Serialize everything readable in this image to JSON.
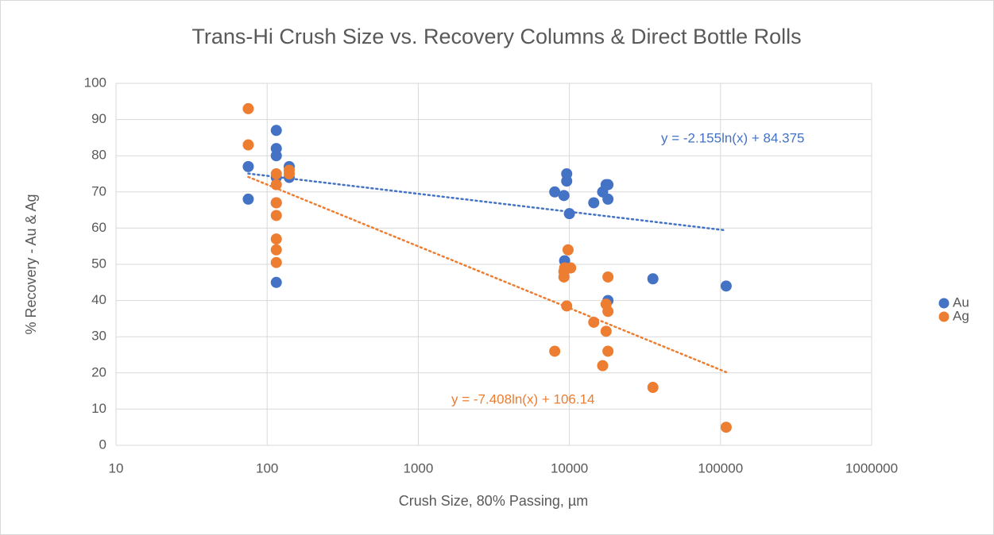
{
  "chart_data": {
    "type": "scatter",
    "title": "Trans-Hi Crush Size vs. Recovery Columns & Direct Bottle Rolls",
    "x_label": "Crush Size, 80% Passing, µm",
    "y_label": "% Recovery - Au & Ag",
    "x_log": true,
    "grid": true,
    "legend": "right",
    "xlim": [
      10,
      1000000
    ],
    "xticks": [
      10,
      100,
      1000,
      10000,
      100000,
      1000000
    ],
    "ylim": [
      0,
      100
    ],
    "yticks": [
      0,
      10,
      20,
      30,
      40,
      50,
      60,
      70,
      80,
      90,
      100
    ],
    "series": [
      {
        "name": "Au",
        "color": "#4472c4",
        "x": [
          75,
          75,
          115,
          115,
          115,
          115,
          115,
          115,
          140,
          140,
          8000,
          9200,
          9600,
          9600,
          10000,
          14500,
          16600,
          17500,
          18000,
          18000,
          9300,
          18000,
          35700,
          109000
        ],
        "values": [
          77,
          68,
          87,
          82,
          80,
          74,
          67,
          45,
          77,
          74,
          70,
          69,
          75,
          73,
          64,
          67,
          70,
          72,
          72,
          68,
          51,
          40,
          46,
          44
        ]
      },
      {
        "name": "Ag",
        "color": "#ed7d31",
        "x": [
          75,
          75,
          115,
          115,
          115,
          115,
          115,
          115,
          115,
          140,
          140,
          8000,
          9300,
          9200,
          9200,
          9600,
          9800,
          10200,
          14500,
          16600,
          17500,
          17500,
          18000,
          18000,
          18000,
          35700,
          109000
        ],
        "values": [
          93,
          83,
          75,
          72,
          67,
          63.5,
          57,
          54,
          50.5,
          76,
          75,
          26,
          49,
          46.5,
          48,
          38.5,
          54,
          49,
          34,
          22,
          39,
          31.5,
          37,
          26,
          46.5,
          16,
          5
        ]
      }
    ],
    "trendlines": [
      {
        "series": 0,
        "slope": -2.155,
        "intercept": 84.375,
        "label": "y = -2.155ln(x) + 84.375"
      },
      {
        "series": 1,
        "slope": -7.408,
        "intercept": 106.14,
        "label": "y = -7.408ln(x) + 106.14"
      }
    ]
  }
}
